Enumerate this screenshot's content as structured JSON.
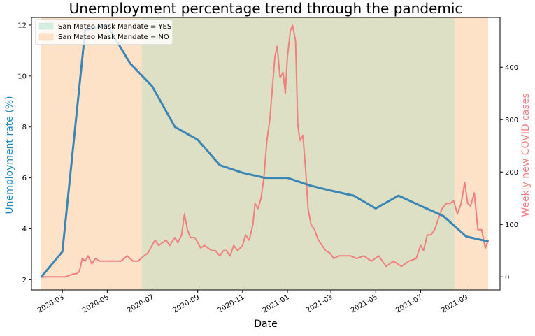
{
  "chart_data": {
    "type": "line",
    "title": "Unemployment percentage trend through the pandemic",
    "xlabel": "Date",
    "ylabel": "Unemployment rate (%)",
    "y2label": "Weekly new COVID cases",
    "xlim": [
      "2020-01-19",
      "2021-10-17"
    ],
    "ylim": [
      1.6,
      12.3
    ],
    "y2lim": [
      -25,
      495
    ],
    "x_ticks": [
      "2020-03",
      "2020-05",
      "2020-07",
      "2020-09",
      "2020-11",
      "2021-01",
      "2021-03",
      "2021-05",
      "2021-07",
      "2021-09"
    ],
    "y_ticks": [
      2,
      4,
      6,
      8,
      10,
      12
    ],
    "y2_ticks": [
      0,
      100,
      200,
      300,
      400
    ],
    "colors": {
      "unemployment": "#3b86b4",
      "cases": "#f08080",
      "mask_yes": "#d4ede2",
      "mask_no": "#fde2c8",
      "overlap": "#dde0c4"
    },
    "legend": {
      "position": "top-left",
      "items": [
        "San Mateo Mask Mandate = YES",
        "San Mateo Mask Mandate = NO"
      ]
    },
    "shaded_regions": [
      {
        "label": "San Mateo Mask Mandate = NO",
        "start": "2020-02-01",
        "end": "2021-10-01"
      },
      {
        "label": "San Mateo Mask Mandate = YES",
        "start": "2020-06-17",
        "end": "2021-08-16"
      }
    ],
    "series": [
      {
        "name": "Unemployment rate (%)",
        "axis": "left",
        "x": [
          "2020-02-01",
          "2020-03-01",
          "2020-04-01",
          "2020-05-01",
          "2020-06-01",
          "2020-07-01",
          "2020-08-01",
          "2020-09-01",
          "2020-10-01",
          "2020-11-01",
          "2020-12-01",
          "2021-01-01",
          "2021-02-01",
          "2021-03-01",
          "2021-04-01",
          "2021-05-01",
          "2021-06-01",
          "2021-07-01",
          "2021-08-01",
          "2021-09-01",
          "2021-10-01"
        ],
        "y": [
          2.1,
          3.1,
          11.8,
          12.0,
          10.5,
          9.6,
          8.0,
          7.5,
          6.5,
          6.2,
          6.0,
          6.0,
          5.7,
          5.5,
          5.3,
          4.8,
          5.3,
          4.9,
          4.5,
          3.7,
          3.5
        ]
      },
      {
        "name": "Weekly new COVID cases",
        "axis": "right",
        "x": [
          "2020-02-01",
          "2020-02-20",
          "2020-03-05",
          "2020-03-15",
          "2020-03-20",
          "2020-03-24",
          "2020-03-28",
          "2020-04-01",
          "2020-04-05",
          "2020-04-10",
          "2020-04-15",
          "2020-04-20",
          "2020-04-25",
          "2020-05-01",
          "2020-05-10",
          "2020-05-20",
          "2020-05-28",
          "2020-06-05",
          "2020-06-12",
          "2020-06-20",
          "2020-06-25",
          "2020-07-01",
          "2020-07-05",
          "2020-07-10",
          "2020-07-15",
          "2020-07-20",
          "2020-07-25",
          "2020-08-01",
          "2020-08-05",
          "2020-08-10",
          "2020-08-14",
          "2020-08-18",
          "2020-08-22",
          "2020-08-28",
          "2020-09-05",
          "2020-09-10",
          "2020-09-15",
          "2020-09-20",
          "2020-09-25",
          "2020-10-01",
          "2020-10-06",
          "2020-10-10",
          "2020-10-15",
          "2020-10-20",
          "2020-10-25",
          "2020-11-01",
          "2020-11-05",
          "2020-11-10",
          "2020-11-15",
          "2020-11-18",
          "2020-11-22",
          "2020-11-26",
          "2020-11-30",
          "2020-12-04",
          "2020-12-08",
          "2020-12-12",
          "2020-12-15",
          "2020-12-18",
          "2020-12-22",
          "2020-12-26",
          "2020-12-29",
          "2021-01-01",
          "2021-01-05",
          "2021-01-08",
          "2021-01-12",
          "2021-01-15",
          "2021-01-18",
          "2021-01-22",
          "2021-01-26",
          "2021-01-29",
          "2021-02-02",
          "2021-02-07",
          "2021-02-12",
          "2021-02-17",
          "2021-02-22",
          "2021-02-28",
          "2021-03-05",
          "2021-03-12",
          "2021-03-20",
          "2021-03-28",
          "2021-04-05",
          "2021-04-15",
          "2021-04-25",
          "2021-05-05",
          "2021-05-15",
          "2021-05-25",
          "2021-06-05",
          "2021-06-15",
          "2021-06-25",
          "2021-07-01",
          "2021-07-05",
          "2021-07-10",
          "2021-07-15",
          "2021-07-20",
          "2021-07-25",
          "2021-07-30",
          "2021-08-05",
          "2021-08-10",
          "2021-08-15",
          "2021-08-20",
          "2021-08-25",
          "2021-08-30",
          "2021-09-03",
          "2021-09-07",
          "2021-09-12",
          "2021-09-17",
          "2021-09-22",
          "2021-09-27",
          "2021-10-01"
        ],
        "y": [
          0,
          0,
          0,
          5,
          6,
          10,
          35,
          30,
          40,
          25,
          35,
          30,
          30,
          30,
          30,
          30,
          40,
          30,
          30,
          40,
          45,
          60,
          70,
          60,
          65,
          70,
          60,
          75,
          65,
          80,
          120,
          90,
          75,
          75,
          55,
          60,
          55,
          50,
          50,
          40,
          50,
          50,
          40,
          60,
          50,
          60,
          80,
          70,
          100,
          140,
          130,
          150,
          190,
          260,
          300,
          370,
          420,
          440,
          380,
          390,
          350,
          420,
          470,
          480,
          450,
          290,
          260,
          270,
          200,
          130,
          100,
          90,
          70,
          60,
          50,
          45,
          35,
          40,
          40,
          40,
          35,
          40,
          30,
          40,
          20,
          30,
          20,
          30,
          35,
          60,
          50,
          80,
          80,
          90,
          110,
          130,
          140,
          140,
          145,
          120,
          140,
          180,
          140,
          135,
          160,
          90,
          90,
          55,
          70
        ]
      }
    ]
  }
}
